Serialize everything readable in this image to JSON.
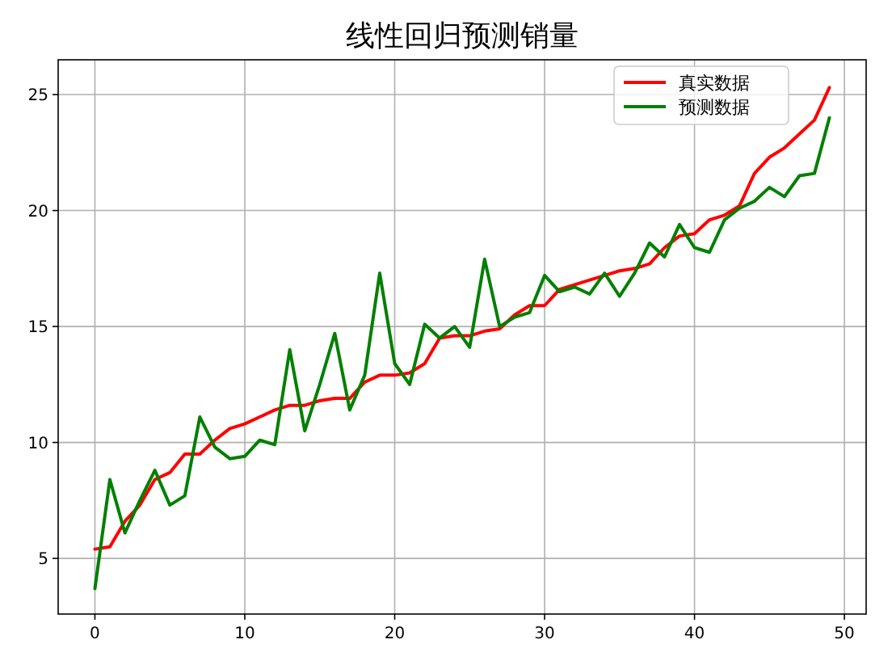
{
  "chart_data": {
    "type": "line",
    "title": "线性回归预测销量",
    "x": [
      0,
      1,
      2,
      3,
      4,
      5,
      6,
      7,
      8,
      9,
      10,
      11,
      12,
      13,
      14,
      15,
      16,
      17,
      18,
      19,
      20,
      21,
      22,
      23,
      24,
      25,
      26,
      27,
      28,
      29,
      30,
      31,
      32,
      33,
      34,
      35,
      36,
      37,
      38,
      39,
      40,
      41,
      42,
      43,
      44,
      45,
      46,
      47,
      48,
      49
    ],
    "series": [
      {
        "name": "真实数据",
        "color": "#ff0000",
        "values": [
          5.4,
          5.5,
          6.6,
          7.3,
          8.4,
          8.7,
          9.5,
          9.5,
          10.1,
          10.6,
          10.8,
          11.1,
          11.4,
          11.6,
          11.6,
          11.8,
          11.9,
          11.9,
          12.6,
          12.9,
          12.9,
          13.0,
          13.4,
          14.5,
          14.6,
          14.6,
          14.8,
          14.9,
          15.5,
          15.9,
          15.9,
          16.6,
          16.8,
          17.0,
          17.2,
          17.4,
          17.5,
          17.7,
          18.4,
          18.9,
          19.0,
          19.6,
          19.8,
          20.2,
          21.6,
          22.3,
          22.7,
          23.3,
          23.9,
          25.3
        ]
      },
      {
        "name": "预测数据",
        "color": "#008000",
        "values": [
          3.7,
          8.4,
          6.1,
          7.5,
          8.8,
          7.3,
          7.7,
          11.1,
          9.8,
          9.3,
          9.4,
          10.1,
          9.9,
          14.0,
          10.5,
          12.5,
          14.7,
          11.4,
          12.9,
          17.3,
          13.4,
          12.5,
          15.1,
          14.5,
          15.0,
          14.1,
          17.9,
          15.0,
          15.4,
          15.6,
          17.2,
          16.5,
          16.7,
          16.4,
          17.3,
          16.3,
          17.3,
          18.6,
          18.0,
          19.4,
          18.4,
          18.2,
          19.6,
          20.1,
          20.4,
          21.0,
          20.6,
          21.5,
          21.6,
          24.0
        ]
      }
    ],
    "xlim": [
      -2.45,
      51.45
    ],
    "ylim": [
      2.6,
      26.5
    ],
    "xticks": [
      0,
      10,
      20,
      30,
      40,
      50
    ],
    "yticks": [
      5,
      10,
      15,
      20,
      25
    ],
    "grid": true,
    "legend": "top right",
    "line_style": "solid",
    "marker": "none"
  }
}
